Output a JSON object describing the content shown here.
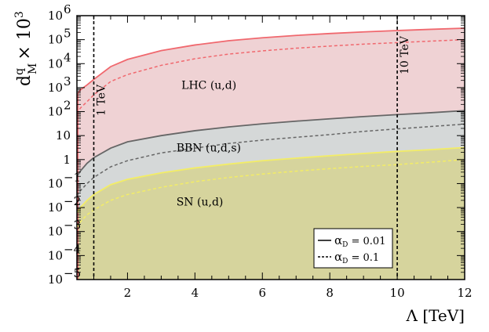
{
  "chart_data": {
    "type": "area",
    "title": "",
    "xlabel": "Λ [TeV]",
    "ylabel": {
      "base": "d",
      "sup": "q",
      "sub": "M",
      "suffix": "× 10",
      "suffix_sup": "3"
    },
    "xlim": [
      0.5,
      12
    ],
    "ylim": [
      1e-05,
      1000000.0
    ],
    "yscale": "log",
    "x_ticks": [
      2,
      4,
      6,
      8,
      10,
      12
    ],
    "y_ticks": [
      {
        "value": 1e-05,
        "base": "10",
        "exp": "−5"
      },
      {
        "value": 0.0001,
        "base": "10",
        "exp": "−4"
      },
      {
        "value": 0.001,
        "base": "10",
        "exp": "−3"
      },
      {
        "value": 0.01,
        "base": "10",
        "exp": "−2"
      },
      {
        "value": 0.1,
        "base": "10",
        "exp": "−1"
      },
      {
        "value": 1,
        "base": "1",
        "exp": ""
      },
      {
        "value": 10,
        "base": "10",
        "exp": ""
      },
      {
        "value": 100,
        "base": "10",
        "exp": "2"
      },
      {
        "value": 1000,
        "base": "10",
        "exp": "3"
      },
      {
        "value": 10000,
        "base": "10",
        "exp": "4"
      },
      {
        "value": 100000,
        "base": "10",
        "exp": "5"
      },
      {
        "value": 1000000,
        "base": "10",
        "exp": "6"
      }
    ],
    "series": [
      {
        "name": "LHC (u,d)",
        "fill": "#efd2d4",
        "line_color": "#f0686e",
        "solid": {
          "x": [
            0.5,
            0.6,
            0.8,
            1,
            1.5,
            2,
            3,
            4,
            5,
            6,
            7,
            8,
            9,
            10,
            11,
            12
          ],
          "y": [
            500,
            800,
            1300,
            2200,
            7500,
            15000,
            35000,
            60000,
            90000,
            120000,
            150000,
            180000,
            210000,
            240000,
            270000,
            300000
          ]
        },
        "dashed": {
          "x": [
            0.5,
            0.6,
            0.8,
            1,
            1.5,
            2,
            3,
            4,
            5,
            6,
            7,
            8,
            9,
            10,
            11,
            12
          ],
          "y": [
            80,
            140,
            260,
            500,
            1800,
            3500,
            8500,
            16000,
            25000,
            34000,
            44000,
            54000,
            65000,
            75000,
            87000,
            100000
          ]
        }
      },
      {
        "name": "BBN (u,d,s)",
        "fill": "#d5d8d8",
        "line_color": "#666666",
        "solid": {
          "x": [
            0.5,
            0.6,
            0.8,
            1,
            1.5,
            2,
            3,
            4,
            5,
            6,
            7,
            8,
            9,
            10,
            11,
            12
          ],
          "y": [
            0.2,
            0.33,
            0.7,
            1.2,
            3,
            5.5,
            10,
            16,
            23,
            31,
            40,
            50,
            62,
            75,
            90,
            110
          ]
        },
        "dashed": {
          "x": [
            0.5,
            0.6,
            0.8,
            1,
            1.5,
            2,
            3,
            4,
            5,
            6,
            7,
            8,
            9,
            10,
            11,
            12
          ],
          "y": [
            0.03,
            0.05,
            0.1,
            0.18,
            0.5,
            0.9,
            1.9,
            3,
            4.7,
            6.5,
            8.5,
            11,
            15,
            19,
            24,
            30
          ]
        }
      },
      {
        "name": "SN (u,d)",
        "fill": "#d6d49d",
        "line_color": "#f3ed66",
        "solid": {
          "x": [
            0.5,
            0.6,
            0.8,
            1,
            1.5,
            2,
            3,
            4,
            5,
            6,
            7,
            8,
            9,
            10,
            11,
            12
          ],
          "y": [
            0.006,
            0.01,
            0.02,
            0.035,
            0.09,
            0.15,
            0.28,
            0.45,
            0.65,
            0.9,
            1.15,
            1.45,
            1.8,
            2.2,
            2.6,
            3.2
          ]
        },
        "dashed": {
          "x": [
            0.5,
            0.6,
            0.8,
            1,
            1.5,
            2,
            3,
            4,
            5,
            6,
            7,
            8,
            9,
            10,
            11,
            12
          ],
          "y": [
            0.0015,
            0.0025,
            0.005,
            0.008,
            0.02,
            0.035,
            0.07,
            0.12,
            0.18,
            0.25,
            0.33,
            0.42,
            0.52,
            0.62,
            0.78,
            1.0
          ]
        }
      }
    ],
    "vertical_lines": [
      {
        "x": 1,
        "label": "1 TeV"
      },
      {
        "x": 10,
        "label": "10 TeV"
      }
    ],
    "annotations": [
      {
        "text": "LHC (u,d)",
        "x": 3.6,
        "y": 900
      },
      {
        "text": "BBN (u,d,s)",
        "x": 3.45,
        "y": 2.2
      },
      {
        "text": "SN (u,d)",
        "x": 3.45,
        "y": 0.012
      }
    ],
    "legend": {
      "position": "bottom-right",
      "entries": [
        {
          "label_symbol": "α",
          "label_sub": "D",
          "label_value": " = 0.01",
          "style": "solid"
        },
        {
          "label_symbol": "α",
          "label_sub": "D",
          "label_value": " = 0.1",
          "style": "dashed"
        }
      ]
    }
  }
}
